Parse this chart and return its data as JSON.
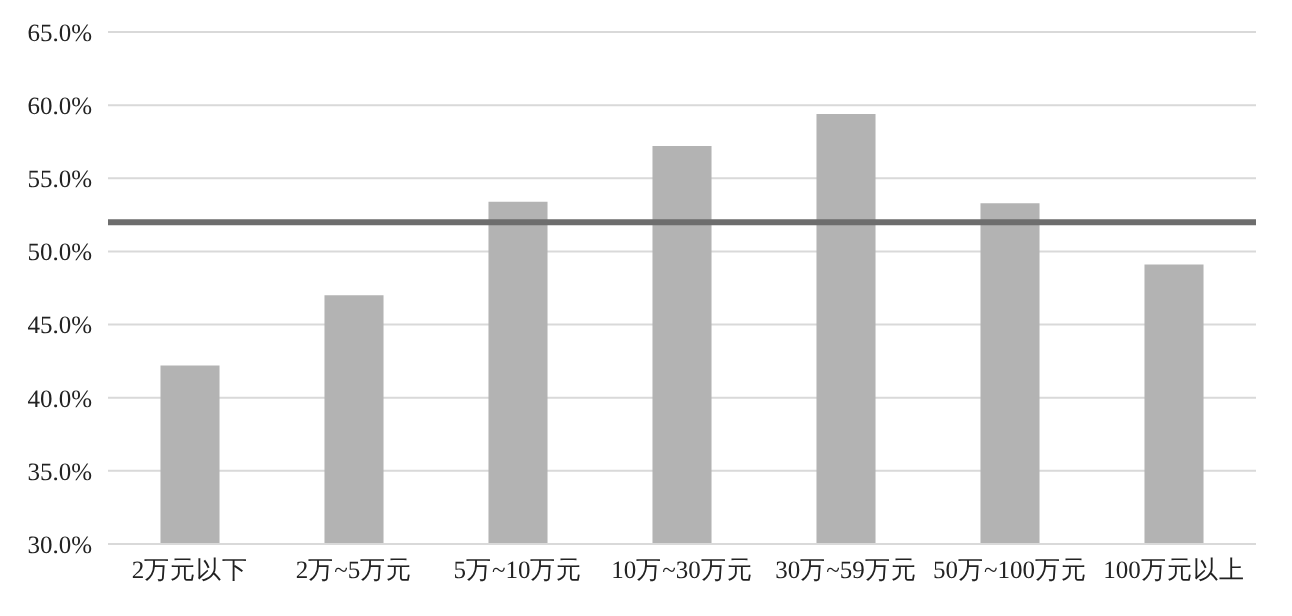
{
  "chart_data": {
    "type": "bar",
    "categories": [
      "2万元以下",
      "2万~5万元",
      "5万~10万元",
      "10万~30万元",
      "30万~59万元",
      "50万~100万元",
      "100万元以上"
    ],
    "values": [
      42.2,
      47.0,
      53.4,
      57.2,
      59.4,
      53.3,
      49.1
    ],
    "color": "#b3b3b3",
    "ylim": [
      30,
      65
    ],
    "yticks": [
      {
        "value": 30,
        "label": "30.0%"
      },
      {
        "value": 35,
        "label": "35.0%"
      },
      {
        "value": 40,
        "label": "40.0%"
      },
      {
        "value": 45,
        "label": "45.0%"
      },
      {
        "value": 50,
        "label": "50.0%"
      },
      {
        "value": 55,
        "label": "55.0%"
      },
      {
        "value": 60,
        "label": "60.0%"
      },
      {
        "value": 65,
        "label": "65.0%"
      }
    ],
    "grid": "y",
    "ref_lines": [
      {
        "axis": "y",
        "value": 52.0,
        "color": "#6d6d6d"
      }
    ]
  }
}
